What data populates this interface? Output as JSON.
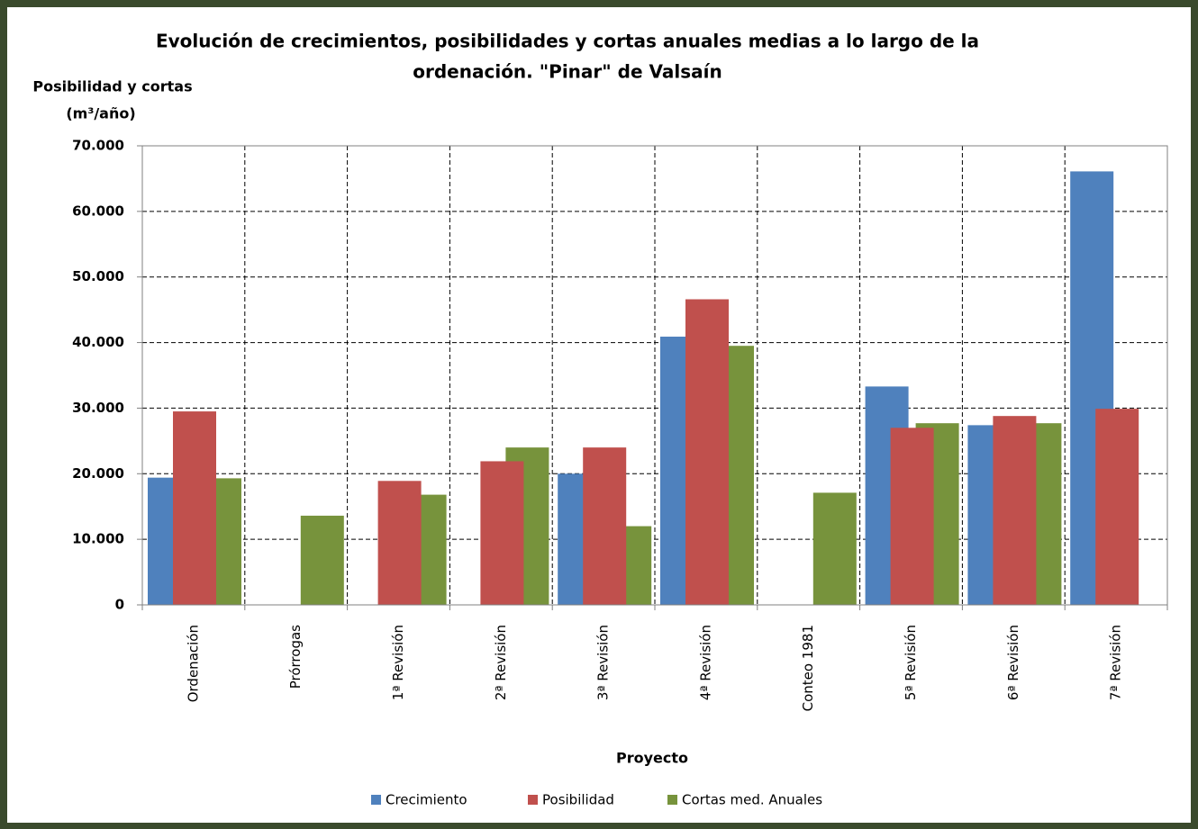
{
  "chart_data": {
    "type": "bar",
    "title": [
      "Evolución de crecimientos, posibilidades y cortas anuales  medias a lo largo de la",
      "ordenación. \"Pinar\" de Valsaín"
    ],
    "y_label": [
      "Posibilidad y cortas",
      "(m³/año)"
    ],
    "x_label": "Proyecto",
    "categories": [
      "Ordenación",
      "Prórrogas",
      "1ª Revisión",
      "2ª Revisión",
      "3ª Revisión",
      "4ª Revisión",
      "Conteo 1981",
      "5ª Revisión",
      "6ª Revisión",
      "7ª Revisión"
    ],
    "series": [
      {
        "name": "Crecimiento",
        "color": "#4f81bd",
        "values": [
          19400,
          null,
          null,
          null,
          20000,
          40900,
          null,
          33300,
          27400,
          66100
        ]
      },
      {
        "name": "Posibilidad",
        "color": "#c0504d",
        "values": [
          29500,
          null,
          18900,
          21900,
          24000,
          46600,
          null,
          27000,
          28800,
          29900
        ]
      },
      {
        "name": "Cortas med. Anuales",
        "color": "#77933c",
        "values": [
          19300,
          13600,
          16800,
          24000,
          12000,
          39500,
          17100,
          27700,
          27700,
          null
        ]
      }
    ],
    "ylim": [
      0,
      70000
    ],
    "yticks": [
      0,
      {
        "value": 10000,
        "label": "10.000"
      },
      {
        "value": 20000,
        "label": "20.000"
      },
      {
        "value": 30000,
        "label": "30.000"
      },
      {
        "value": 40000,
        "label": "40.000"
      },
      {
        "value": 50000,
        "label": "50.000"
      },
      {
        "value": 60000,
        "label": "60.000"
      },
      {
        "value": 70000,
        "label": "70.000"
      }
    ],
    "grid": true,
    "legend": "bottom"
  }
}
